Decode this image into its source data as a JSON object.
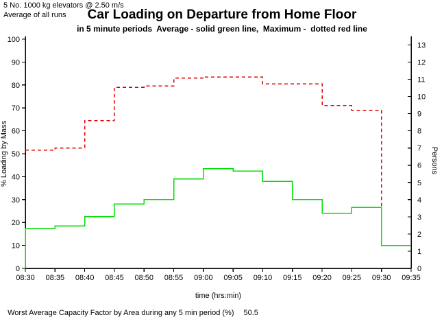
{
  "header": {
    "config_line": "5 No. 1000 kg elevators @ 2.50 m/s",
    "runs_line": "Average of all runs",
    "title": "Car Loading on Departure from Home Floor",
    "subtitle": "in 5 minute periods  Average - solid green line,  Maximum -  dotted red line"
  },
  "footer": {
    "label": "Worst Average Capacity Factor by Area during any 5 min period (%)",
    "value": "50.5"
  },
  "colors": {
    "background": "#ffffff",
    "axis": "#000000",
    "average_line": "#00dd00",
    "maximum_line": "#e00000"
  },
  "chart_data": {
    "type": "line",
    "line_shape": "step-after",
    "title": "Car Loading on Departure from Home Floor",
    "subtitle": "in 5 minute periods  Average - solid green line,  Maximum -  dotted red line",
    "xlabel": "time (hrs:min)",
    "ylabel_left": "% Loading by Mass",
    "ylabel_right": "Persons",
    "grid": false,
    "legend_position": "in-subtitle",
    "ylim_left": [
      0,
      100
    ],
    "ylim_right": [
      0,
      13
    ],
    "percent_per_person": 7.5,
    "x_tick_labels": [
      "08:30",
      "08:35",
      "08:40",
      "08:45",
      "08:50",
      "08:55",
      "09:00",
      "09:05",
      "09:10",
      "09:15",
      "09:20",
      "09:25",
      "09:30",
      "09:35"
    ],
    "y_ticks_left": [
      0,
      10,
      20,
      30,
      40,
      50,
      60,
      70,
      80,
      90,
      100
    ],
    "y_ticks_right": [
      0,
      1,
      2,
      3,
      4,
      5,
      6,
      7,
      8,
      9,
      10,
      11,
      12,
      13
    ],
    "series": [
      {
        "name": "Maximum",
        "legend": "dotted red line",
        "color": "#e00000",
        "dash": "dashed",
        "starts_at_zero": false,
        "values": [
          51.5,
          52.5,
          64.5,
          79,
          79.5,
          83,
          83.5,
          83.5,
          80.5,
          80.5,
          71,
          69,
          10
        ]
      },
      {
        "name": "Average",
        "legend": "solid green line",
        "color": "#00dd00",
        "dash": "solid",
        "starts_at_zero": true,
        "values": [
          17.5,
          18.5,
          22.5,
          28,
          30,
          39,
          43.5,
          42.5,
          38,
          30,
          24,
          26.5,
          10
        ]
      }
    ]
  }
}
